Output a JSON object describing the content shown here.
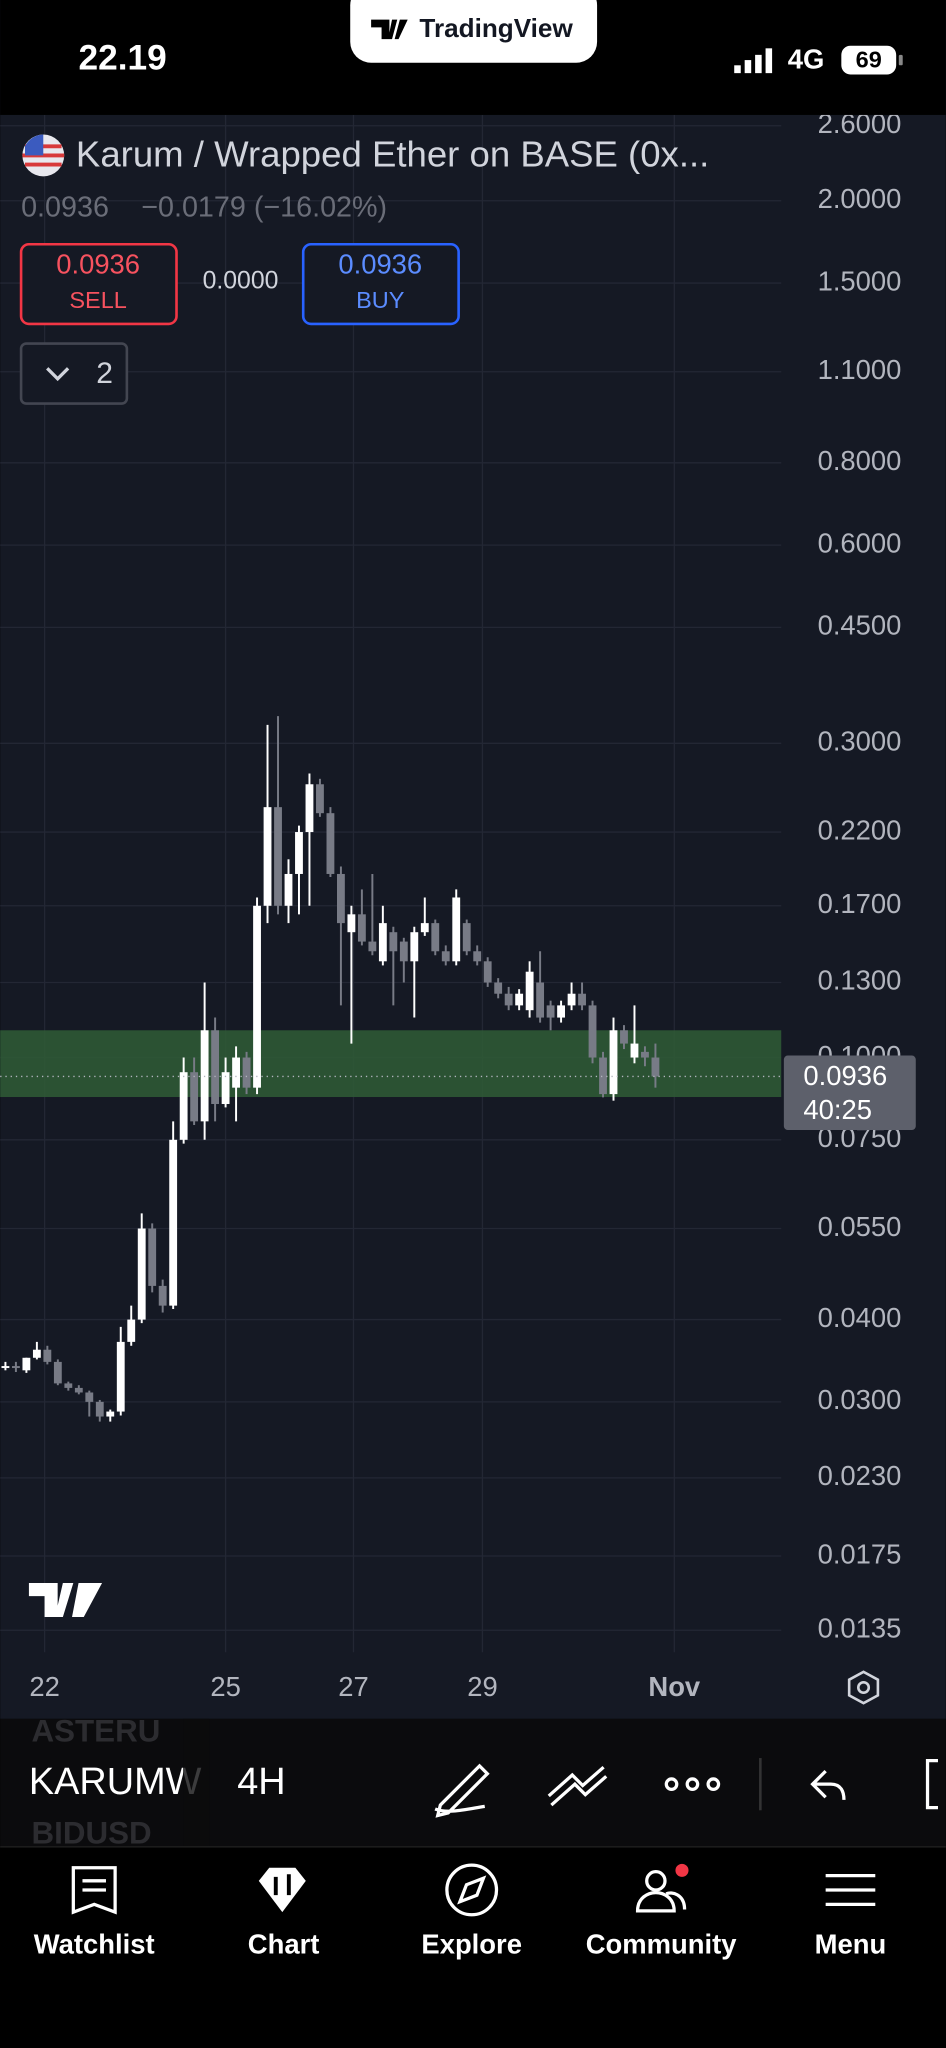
{
  "status_bar": {
    "time": "22.19",
    "network": "4G",
    "battery": "69"
  },
  "brand": "TradingView",
  "symbol": {
    "title": "Karum / Wrapped Ether on BASE (0x...",
    "quote": "0.0936",
    "change": "−0.0179 (−16.02%)"
  },
  "trade": {
    "sell_price": "0.0936",
    "sell": "SELL",
    "spread": "0.0000",
    "buy_price": "0.0936",
    "buy": "BUY"
  },
  "indicators_count": "2",
  "chart_data": {
    "type": "candlestick",
    "log_scale": true,
    "grid": true,
    "up_color": "#ffffff",
    "down_color": "#787b86",
    "zone_color": "#2f5d36",
    "zone": [
      0.0871,
      0.11
    ],
    "open": [
      0.034,
      0.034,
      0.0335,
      0.035,
      0.036,
      0.0345,
      0.032,
      0.0315,
      0.031,
      0.03,
      0.0285,
      0.029,
      0.037,
      0.04,
      0.055,
      0.045,
      0.042,
      0.075,
      0.095,
      0.08,
      0.11,
      0.085,
      0.09,
      0.1,
      0.09,
      0.17,
      0.24,
      0.17,
      0.19,
      0.22,
      0.26,
      0.235,
      0.19,
      0.155,
      0.165,
      0.15,
      0.14,
      0.155,
      0.15,
      0.14,
      0.155,
      0.16,
      0.145,
      0.14,
      0.16,
      0.145,
      0.14,
      0.13,
      0.125,
      0.12,
      0.118,
      0.13,
      0.12,
      0.115,
      0.12,
      0.125,
      0.12,
      0.1,
      0.088,
      0.11,
      0.1,
      0.102,
      0.1
    ],
    "high": [
      0.0345,
      0.0345,
      0.035,
      0.037,
      0.0365,
      0.0348,
      0.0322,
      0.0318,
      0.0312,
      0.0302,
      0.0292,
      0.039,
      0.042,
      0.058,
      0.056,
      0.046,
      0.08,
      0.1,
      0.1,
      0.13,
      0.115,
      0.1,
      0.104,
      0.102,
      0.175,
      0.32,
      0.33,
      0.2,
      0.225,
      0.27,
      0.265,
      0.24,
      0.195,
      0.17,
      0.18,
      0.19,
      0.17,
      0.158,
      0.152,
      0.158,
      0.175,
      0.162,
      0.148,
      0.18,
      0.162,
      0.148,
      0.142,
      0.132,
      0.128,
      0.127,
      0.14,
      0.145,
      0.122,
      0.122,
      0.13,
      0.13,
      0.122,
      0.102,
      0.115,
      0.112,
      0.12,
      0.104,
      0.105
    ],
    "low": [
      0.0335,
      0.0333,
      0.0332,
      0.0348,
      0.0342,
      0.0318,
      0.0312,
      0.0308,
      0.0285,
      0.028,
      0.028,
      0.0286,
      0.0365,
      0.0395,
      0.044,
      0.041,
      0.0415,
      0.074,
      0.079,
      0.075,
      0.08,
      0.084,
      0.08,
      0.088,
      0.088,
      0.16,
      0.165,
      0.16,
      0.165,
      0.17,
      0.232,
      0.188,
      0.12,
      0.105,
      0.148,
      0.143,
      0.138,
      0.12,
      0.13,
      0.115,
      0.153,
      0.143,
      0.138,
      0.138,
      0.143,
      0.138,
      0.128,
      0.123,
      0.118,
      0.118,
      0.115,
      0.113,
      0.11,
      0.113,
      0.118,
      0.118,
      0.098,
      0.087,
      0.086,
      0.103,
      0.098,
      0.097,
      0.09
    ],
    "close": [
      0.034,
      0.0338,
      0.035,
      0.036,
      0.0345,
      0.032,
      0.0315,
      0.031,
      0.03,
      0.0285,
      0.029,
      0.037,
      0.04,
      0.055,
      0.045,
      0.042,
      0.075,
      0.095,
      0.08,
      0.11,
      0.085,
      0.095,
      0.1,
      0.09,
      0.17,
      0.24,
      0.17,
      0.19,
      0.22,
      0.26,
      0.235,
      0.19,
      0.16,
      0.165,
      0.15,
      0.145,
      0.16,
      0.145,
      0.14,
      0.155,
      0.16,
      0.145,
      0.14,
      0.175,
      0.145,
      0.14,
      0.13,
      0.125,
      0.12,
      0.125,
      0.135,
      0.115,
      0.115,
      0.12,
      0.125,
      0.12,
      0.1,
      0.088,
      0.11,
      0.105,
      0.105,
      0.1,
      0.0936
    ],
    "last_price": 0.0936,
    "ylim": [
      0.0125,
      2.7
    ],
    "yticks": [
      {
        "value": 2.6,
        "label": "2.6000"
      },
      {
        "value": 2,
        "label": "2.0000"
      },
      {
        "value": 1.5,
        "label": "1.5000"
      },
      {
        "value": 1.1,
        "label": "1.1000"
      },
      {
        "value": 0.8,
        "label": "0.8000"
      },
      {
        "value": 0.6,
        "label": "0.6000"
      },
      {
        "value": 0.45,
        "label": "0.4500"
      },
      {
        "value": 0.3,
        "label": "0.3000"
      },
      {
        "value": 0.22,
        "label": "0.2200"
      },
      {
        "value": 0.17,
        "label": "0.1700"
      },
      {
        "value": 0.13,
        "label": "0.1300"
      },
      {
        "value": 0.1,
        "label": "0.1000"
      },
      {
        "value": 0.075,
        "label": "0.0750"
      },
      {
        "value": 0.055,
        "label": "0.0550"
      },
      {
        "value": 0.04,
        "label": "0.0400"
      },
      {
        "value": 0.03,
        "label": "0.0300"
      },
      {
        "value": 0.023,
        "label": "0.0230"
      },
      {
        "value": 0.0175,
        "label": "0.0175"
      },
      {
        "value": 0.0135,
        "label": "0.0135"
      }
    ],
    "xlim": [
      -0.5,
      74
    ],
    "xticks": [
      {
        "value": 3.74,
        "label": "22"
      },
      {
        "value": 21,
        "label": "25"
      },
      {
        "value": 33.2,
        "label": "27"
      },
      {
        "value": 45.5,
        "label": "29"
      },
      {
        "value": 63.8,
        "label": "Nov"
      }
    ]
  },
  "price_label": {
    "countdown": "40:25"
  },
  "toolbar": {
    "above": "ASTERU",
    "symbol": "KARUMW",
    "below": "BIDUSD",
    "interval": "4H"
  },
  "nav": [
    "Watchlist",
    "Chart",
    "Explore",
    "Community",
    "Menu"
  ]
}
